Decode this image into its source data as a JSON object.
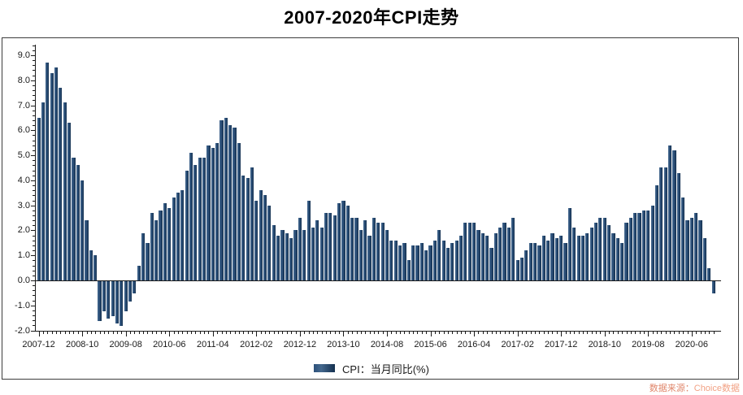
{
  "title": "2007-2020年CPI走势",
  "legend": {
    "label": "CPI：当月同比(%)"
  },
  "source": {
    "prefix": "数据来源：",
    "name": "Choice数据"
  },
  "colors": {
    "background": "#ffffff",
    "bar_light": "#44688e",
    "bar_mid": "#2d517a",
    "bar_dark": "#14304f",
    "axis": "#1a1a1a",
    "frame": "#3d3d3d",
    "text": "#1a1a1a",
    "source_label": "#e0876c",
    "source_name": "#f2a285"
  },
  "chart_data": {
    "type": "bar",
    "title": "2007-2020年CPI走势",
    "xlabel": "",
    "ylabel": "",
    "ylim": [
      -2.0,
      9.0
    ],
    "y_tick_step": 1.0,
    "grid": false,
    "legend_position": "bottom-center",
    "y_tick_labels": [
      "9.0",
      "8.0",
      "7.0",
      "6.0",
      "5.0",
      "4.0",
      "3.0",
      "2.0",
      "1.0",
      "0.0",
      "-1.0",
      "-2.0"
    ],
    "x_tick_interval": 10,
    "x_tick_labels": [
      "2007-12",
      "2008-10",
      "2009-08",
      "2010-06",
      "2011-04",
      "2012-02",
      "2012-12",
      "2013-10",
      "2014-08",
      "2015-06",
      "2016-04",
      "2017-02",
      "2017-12",
      "2018-10",
      "2019-08",
      "2020-06"
    ],
    "categories": [
      "2007-12",
      "2008-01",
      "2008-02",
      "2008-03",
      "2008-04",
      "2008-05",
      "2008-06",
      "2008-07",
      "2008-08",
      "2008-09",
      "2008-10",
      "2008-11",
      "2008-12",
      "2009-01",
      "2009-02",
      "2009-03",
      "2009-04",
      "2009-05",
      "2009-06",
      "2009-07",
      "2009-08",
      "2009-09",
      "2009-10",
      "2009-11",
      "2009-12",
      "2010-01",
      "2010-02",
      "2010-03",
      "2010-04",
      "2010-05",
      "2010-06",
      "2010-07",
      "2010-08",
      "2010-09",
      "2010-10",
      "2010-11",
      "2010-12",
      "2011-01",
      "2011-02",
      "2011-03",
      "2011-04",
      "2011-05",
      "2011-06",
      "2011-07",
      "2011-08",
      "2011-09",
      "2011-10",
      "2011-11",
      "2011-12",
      "2012-01",
      "2012-02",
      "2012-03",
      "2012-04",
      "2012-05",
      "2012-06",
      "2012-07",
      "2012-08",
      "2012-09",
      "2012-10",
      "2012-11",
      "2012-12",
      "2013-01",
      "2013-02",
      "2013-03",
      "2013-04",
      "2013-05",
      "2013-06",
      "2013-07",
      "2013-08",
      "2013-09",
      "2013-10",
      "2013-11",
      "2013-12",
      "2014-01",
      "2014-02",
      "2014-03",
      "2014-04",
      "2014-05",
      "2014-06",
      "2014-07",
      "2014-08",
      "2014-09",
      "2014-10",
      "2014-11",
      "2014-12",
      "2015-01",
      "2015-02",
      "2015-03",
      "2015-04",
      "2015-05",
      "2015-06",
      "2015-07",
      "2015-08",
      "2015-09",
      "2015-10",
      "2015-11",
      "2015-12",
      "2016-01",
      "2016-02",
      "2016-03",
      "2016-04",
      "2016-05",
      "2016-06",
      "2016-07",
      "2016-08",
      "2016-09",
      "2016-10",
      "2016-11",
      "2016-12",
      "2017-01",
      "2017-02",
      "2017-03",
      "2017-04",
      "2017-05",
      "2017-06",
      "2017-07",
      "2017-08",
      "2017-09",
      "2017-10",
      "2017-11",
      "2017-12",
      "2018-01",
      "2018-02",
      "2018-03",
      "2018-04",
      "2018-05",
      "2018-06",
      "2018-07",
      "2018-08",
      "2018-09",
      "2018-10",
      "2018-11",
      "2018-12",
      "2019-01",
      "2019-02",
      "2019-03",
      "2019-04",
      "2019-05",
      "2019-06",
      "2019-07",
      "2019-08",
      "2019-09",
      "2019-10",
      "2019-11",
      "2019-12",
      "2020-01",
      "2020-02",
      "2020-03",
      "2020-04",
      "2020-05",
      "2020-06",
      "2020-07",
      "2020-08",
      "2020-09",
      "2020-10",
      "2020-11"
    ],
    "series": [
      {
        "name": "CPI：当月同比(%)",
        "values": [
          6.5,
          7.1,
          8.7,
          8.3,
          8.5,
          7.7,
          7.1,
          6.3,
          4.9,
          4.6,
          4.0,
          2.4,
          1.2,
          1.0,
          -1.6,
          -1.2,
          -1.5,
          -1.4,
          -1.7,
          -1.8,
          -1.2,
          -0.8,
          -0.5,
          0.6,
          1.9,
          1.5,
          2.7,
          2.4,
          2.8,
          3.1,
          2.9,
          3.3,
          3.5,
          3.6,
          4.4,
          5.1,
          4.6,
          4.9,
          4.9,
          5.4,
          5.3,
          5.5,
          6.4,
          6.5,
          6.2,
          6.1,
          5.5,
          4.2,
          4.1,
          4.5,
          3.2,
          3.6,
          3.4,
          3.0,
          2.2,
          1.8,
          2.0,
          1.9,
          1.7,
          2.0,
          2.5,
          2.0,
          3.2,
          2.1,
          2.4,
          2.1,
          2.7,
          2.7,
          2.6,
          3.1,
          3.2,
          3.0,
          2.5,
          2.5,
          2.0,
          2.4,
          1.8,
          2.5,
          2.3,
          2.3,
          2.0,
          1.6,
          1.6,
          1.4,
          1.5,
          0.8,
          1.4,
          1.4,
          1.5,
          1.2,
          1.4,
          1.6,
          2.0,
          1.6,
          1.3,
          1.5,
          1.6,
          1.8,
          2.3,
          2.3,
          2.3,
          2.0,
          1.9,
          1.8,
          1.3,
          1.9,
          2.1,
          2.3,
          2.1,
          2.5,
          0.8,
          0.9,
          1.2,
          1.5,
          1.5,
          1.4,
          1.8,
          1.6,
          1.9,
          1.7,
          1.8,
          1.5,
          2.9,
          2.1,
          1.8,
          1.8,
          1.9,
          2.1,
          2.3,
          2.5,
          2.5,
          2.2,
          1.9,
          1.7,
          1.5,
          2.3,
          2.5,
          2.7,
          2.7,
          2.8,
          2.8,
          3.0,
          3.8,
          4.5,
          4.5,
          5.4,
          5.2,
          4.3,
          3.3,
          2.4,
          2.5,
          2.7,
          2.4,
          1.7,
          0.5,
          -0.5
        ]
      }
    ]
  }
}
